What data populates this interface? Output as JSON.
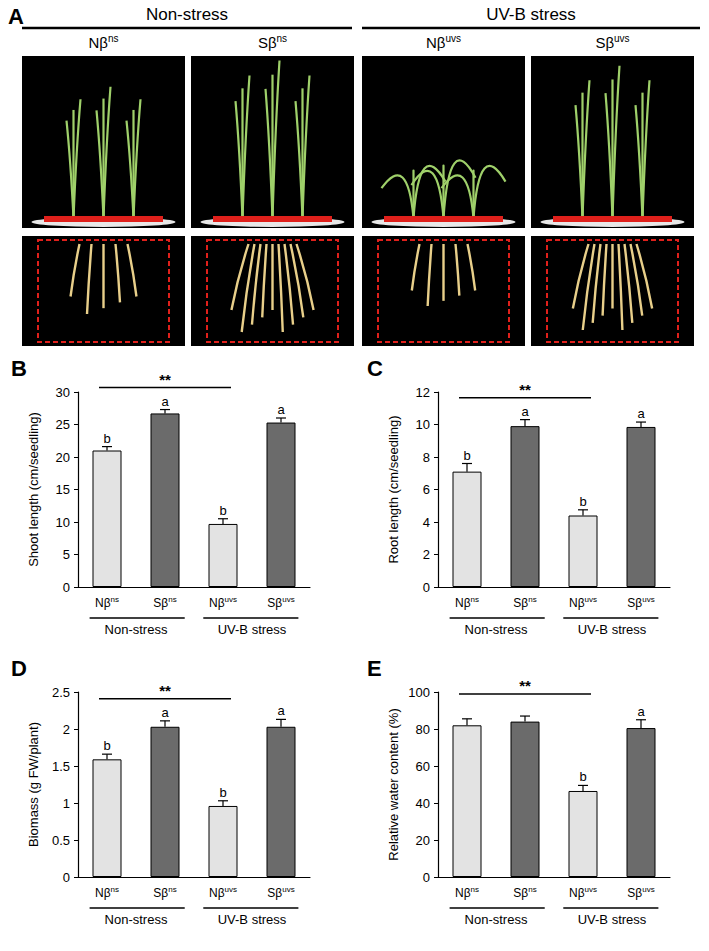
{
  "panel_a": {
    "label": "A",
    "groups": [
      "Non-stress",
      "UV-B stress"
    ],
    "images": [
      "Nβns",
      "Sβns",
      "Nβuvs",
      "Sβuvs"
    ]
  },
  "chart_data": [
    {
      "type": "bar",
      "title": "B",
      "y_label": "Shoot length (cm/seedling)",
      "categories": [
        "Nβns",
        "Sβns",
        "Nβuvs",
        "Sβuvs"
      ],
      "groups": [
        "Non-stress",
        "UV-B stress"
      ],
      "values": [
        21,
        26.7,
        9.7,
        25.3
      ],
      "errors": [
        0.6,
        0.6,
        0.8,
        0.7
      ],
      "letters": [
        "b",
        "a",
        "b",
        "a"
      ],
      "colors": [
        "#e3e3e3",
        "#6b6b6b",
        "#e3e3e3",
        "#6b6b6b"
      ],
      "bracket": {
        "from": 0,
        "to": 2,
        "label": "**"
      },
      "ylim": [
        0,
        30
      ],
      "yticks": [
        0,
        5,
        10,
        15,
        20,
        25,
        30
      ],
      "grid": false
    },
    {
      "type": "bar",
      "title": "C",
      "y_label": "Root length (cm/seedling)",
      "categories": [
        "Nβns",
        "Sβns",
        "Nβuvs",
        "Sβuvs"
      ],
      "groups": [
        "Non-stress",
        "UV-B stress"
      ],
      "values": [
        7.1,
        9.9,
        4.4,
        9.85
      ],
      "errors": [
        0.5,
        0.4,
        0.35,
        0.3
      ],
      "letters": [
        "b",
        "a",
        "b",
        "a"
      ],
      "colors": [
        "#e3e3e3",
        "#6b6b6b",
        "#e3e3e3",
        "#6b6b6b"
      ],
      "bracket": {
        "from": 0,
        "to": 2,
        "label": "**"
      },
      "ylim": [
        0,
        12
      ],
      "yticks": [
        0,
        2,
        4,
        6,
        8,
        10,
        12
      ],
      "grid": false
    },
    {
      "type": "bar",
      "title": "D",
      "y_label": "Biomass (g FW/plant)",
      "categories": [
        "Nβns",
        "Sβns",
        "Nβuvs",
        "Sβuvs"
      ],
      "groups": [
        "Non-stress",
        "UV-B stress"
      ],
      "values": [
        1.59,
        2.03,
        0.96,
        2.03
      ],
      "errors": [
        0.07,
        0.08,
        0.07,
        0.1
      ],
      "letters": [
        "b",
        "a",
        "b",
        "a"
      ],
      "colors": [
        "#e3e3e3",
        "#6b6b6b",
        "#e3e3e3",
        "#6b6b6b"
      ],
      "bracket": {
        "from": 0,
        "to": 2,
        "label": "**"
      },
      "ylim": [
        0,
        2.5
      ],
      "yticks": [
        0,
        0.5,
        1,
        1.5,
        2,
        2.5
      ],
      "grid": false
    },
    {
      "type": "bar",
      "title": "E",
      "y_label": "Relative water content (%)",
      "categories": [
        "Nβns",
        "Sβns",
        "Nβuvs",
        "Sβuvs"
      ],
      "groups": [
        "Non-stress",
        "UV-B stress"
      ],
      "values": [
        82,
        84,
        46.5,
        80.5
      ],
      "errors": [
        3.5,
        3,
        3,
        4.5
      ],
      "letters": [
        null,
        null,
        "b",
        "a"
      ],
      "colors": [
        "#e3e3e3",
        "#6b6b6b",
        "#e3e3e3",
        "#6b6b6b"
      ],
      "bracket": {
        "from": 0,
        "to": 2,
        "label": "**"
      },
      "ylim": [
        0,
        100
      ],
      "yticks": [
        0,
        20,
        40,
        60,
        80,
        100
      ],
      "grid": false
    }
  ]
}
